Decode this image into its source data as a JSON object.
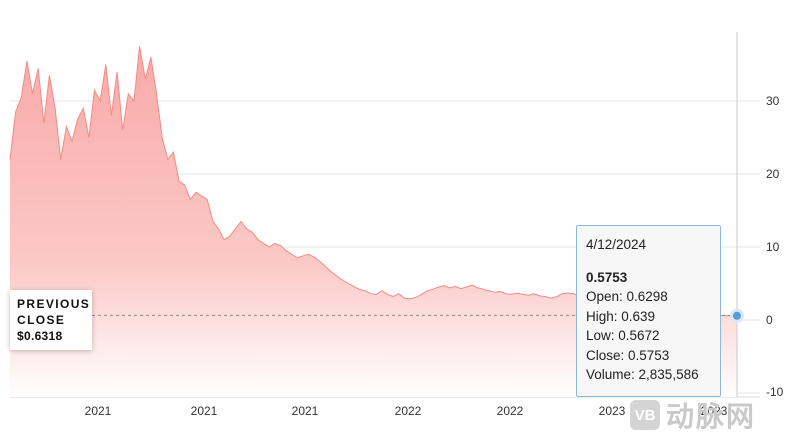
{
  "chart_data": {
    "type": "area",
    "ylim": [
      -10,
      40
    ],
    "yticks": [
      0,
      10,
      20,
      30
    ],
    "yticklabels": [
      "0",
      "10",
      "20",
      "30"
    ],
    "ylabel_partial": "-10",
    "xticklabels": [
      "2021",
      "2021",
      "2021",
      "2022",
      "2022",
      "2023",
      "2023",
      "2024"
    ],
    "grid": true,
    "colors": {
      "fill": "#f8a9a7",
      "line": "#f28b86",
      "marker": "#5b9bd5"
    },
    "series": [
      {
        "values": [
          22.0,
          28.5,
          30.5,
          35.5,
          31.0,
          34.5,
          27.0,
          33.5,
          29.0,
          22.0,
          26.5,
          24.5,
          27.5,
          29.0,
          25.0,
          31.5,
          30.0,
          35.0,
          28.0,
          34.0,
          26.0,
          31.0,
          30.0,
          37.5,
          33.0,
          36.0,
          31.0,
          25.0,
          22.0,
          23.0,
          19.0,
          18.5,
          16.5,
          17.5,
          17.0,
          16.5,
          13.5,
          12.5,
          11.0,
          11.5,
          12.5,
          13.5,
          12.5,
          12.0,
          11.0,
          10.5,
          10.0,
          10.5,
          10.2,
          9.5,
          9.0,
          8.5,
          8.8,
          9.0,
          8.6,
          8.0,
          7.3,
          6.6,
          6.0,
          5.5,
          5.0,
          4.6,
          4.2,
          4.0,
          3.6,
          3.5,
          4.0,
          3.5,
          3.2,
          3.6,
          3.0,
          2.9,
          3.1,
          3.5,
          4.0,
          4.2,
          4.5,
          4.7,
          4.4,
          4.6,
          4.3,
          4.5,
          4.8,
          4.4,
          4.2,
          4.0,
          3.8,
          3.9,
          3.6,
          3.5,
          3.7,
          3.5,
          3.4,
          3.6,
          3.3,
          3.2,
          3.0,
          3.2,
          3.6,
          3.7,
          3.6,
          3.3,
          2.8,
          2.5,
          2.3,
          2.2,
          2.0,
          1.9,
          1.9,
          2.0,
          1.8,
          1.7,
          1.8,
          1.9,
          2.1,
          1.9,
          1.6,
          1.4,
          1.3,
          1.2,
          1.1,
          0.9,
          0.8,
          0.7,
          0.6,
          0.6,
          0.6,
          0.62,
          0.58,
          0.5753
        ]
      }
    ],
    "previous_close": {
      "line1": "PREVIOUS",
      "line2": "CLOSE",
      "value": "$0.6318",
      "y": 0.6318
    },
    "tooltip": {
      "date": "4/12/2024",
      "price": "0.5753",
      "open": "Open: 0.6298",
      "high": "High: 0.639",
      "low": "Low: 0.5672",
      "close": "Close: 0.5753",
      "volume": "Volume: 2,835,586"
    }
  },
  "watermark": {
    "logo_text": "VB",
    "text": "动脉网"
  }
}
